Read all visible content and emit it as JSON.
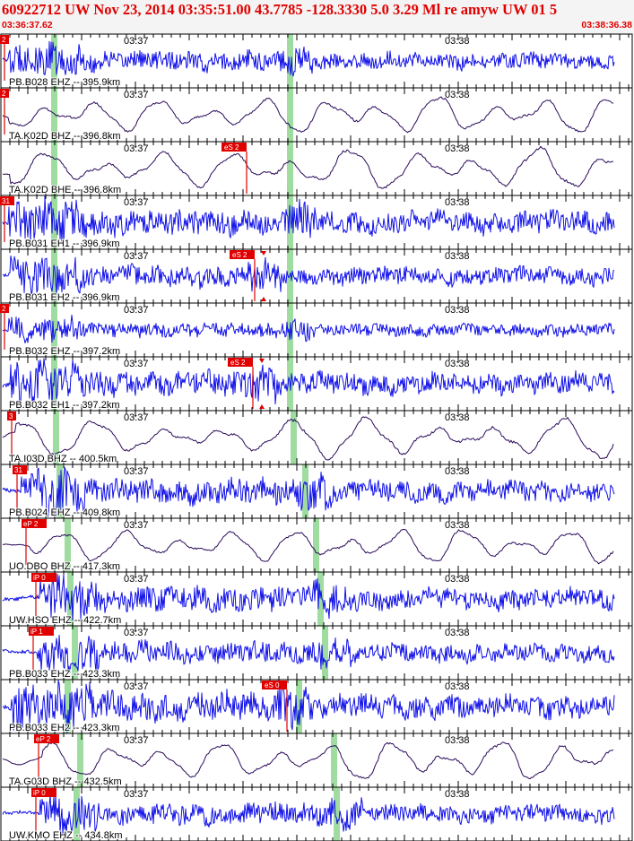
{
  "header": {
    "title": "60922712 UW Nov 23, 2014 03:35:51.00   43.7785 -128.3330  5.0 3.29 Ml re amyw UW 01   5",
    "start_time": "03:36:37.62",
    "end_time": "03:38:36.38"
  },
  "time_axis": {
    "label_1": "03:37",
    "label_2": "03:38"
  },
  "colors": {
    "short_period": "#1010e8",
    "broadband": "#2a0a5a",
    "pick": "#e00000",
    "window": "#9fdca0"
  },
  "traces": [
    {
      "station": "PB.B028 EHZ -- 395.9km",
      "pick_label": "2",
      "s_label": "",
      "kind": "short_period",
      "amp": 0.3
    },
    {
      "station": "TA.K02D BHZ -- 396.8km",
      "pick_label": "2",
      "s_label": "",
      "kind": "broadband",
      "amp": 0.32
    },
    {
      "station": "TA.K02D BHE -- 396.8km",
      "pick_label": "",
      "s_label": "eS 2",
      "kind": "broadband",
      "amp": 0.35
    },
    {
      "station": "PB.B031 EH1 -- 396.9km",
      "pick_label": "31",
      "s_label": "",
      "kind": "short_period",
      "amp": 0.4
    },
    {
      "station": "PB.B031 EH2 -- 396.9km",
      "pick_label": "",
      "s_label": "eS 2",
      "kind": "short_period",
      "amp": 0.32
    },
    {
      "station": "PB.B032 EHZ -- 397.2km",
      "pick_label": "2",
      "s_label": "",
      "kind": "short_period",
      "amp": 0.22
    },
    {
      "station": "PB.B032 EH1 -- 397.2km",
      "pick_label": "",
      "s_label": "eS 2",
      "kind": "short_period",
      "amp": 0.38
    },
    {
      "station": "TA.I03D BHZ -- 400.5km",
      "pick_label": "3",
      "s_label": "",
      "kind": "broadband",
      "amp": 0.35
    },
    {
      "station": "PB.B024 EHZ -- 409.8km",
      "pick_label": "31",
      "s_label": "",
      "kind": "short_period",
      "amp": 0.38
    },
    {
      "station": "UO.DBO BHZ -- 417.3km",
      "pick_label": "eP 2",
      "s_label": "",
      "kind": "broadband",
      "amp": 0.3
    },
    {
      "station": "UW.HSO EHZ -- 422.7km",
      "pick_label": "iP 0",
      "s_label": "",
      "kind": "short_period",
      "amp": 0.38
    },
    {
      "station": "PB.B033 EHZ -- 423.3km",
      "pick_label": "iP 1",
      "s_label": "",
      "kind": "short_period",
      "amp": 0.33
    },
    {
      "station": "PB.B033 EH2 -- 423.3km",
      "pick_label": "",
      "s_label": "eS 0",
      "kind": "short_period",
      "amp": 0.42
    },
    {
      "station": "TA.G03D BHZ -- 432.5km",
      "pick_label": "eP 2",
      "s_label": "",
      "kind": "broadband",
      "amp": 0.35
    },
    {
      "station": "UW.KMO EHZ -- 434.8km",
      "pick_label": "iP 0",
      "s_label": "",
      "kind": "short_period",
      "amp": 0.32
    }
  ]
}
